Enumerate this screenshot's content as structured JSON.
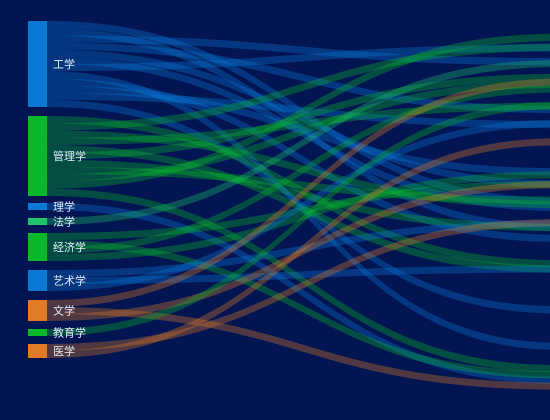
{
  "chart_data": {
    "type": "sankey",
    "background": "#021552",
    "nodes": [
      {
        "id": "engineering",
        "label": "工学",
        "color": "#0a79d6"
      },
      {
        "id": "management",
        "label": "管理学",
        "color": "#08b829"
      },
      {
        "id": "science",
        "label": "理学",
        "color": "#0a79d6"
      },
      {
        "id": "law",
        "label": "法学",
        "color": "#1ec46a"
      },
      {
        "id": "economics",
        "label": "经济学",
        "color": "#08b829"
      },
      {
        "id": "arts",
        "label": "艺术学",
        "color": "#0a79d6"
      },
      {
        "id": "literature",
        "label": "文学",
        "color": "#e07a24"
      },
      {
        "id": "education",
        "label": "教育学",
        "color": "#08b829"
      },
      {
        "id": "medicine",
        "label": "医学",
        "color": "#e07a24"
      }
    ],
    "node_values": [
      86,
      80,
      7,
      7,
      28,
      21,
      21,
      7,
      14
    ],
    "right_side": "clipped",
    "link_opacity": 0.35
  }
}
